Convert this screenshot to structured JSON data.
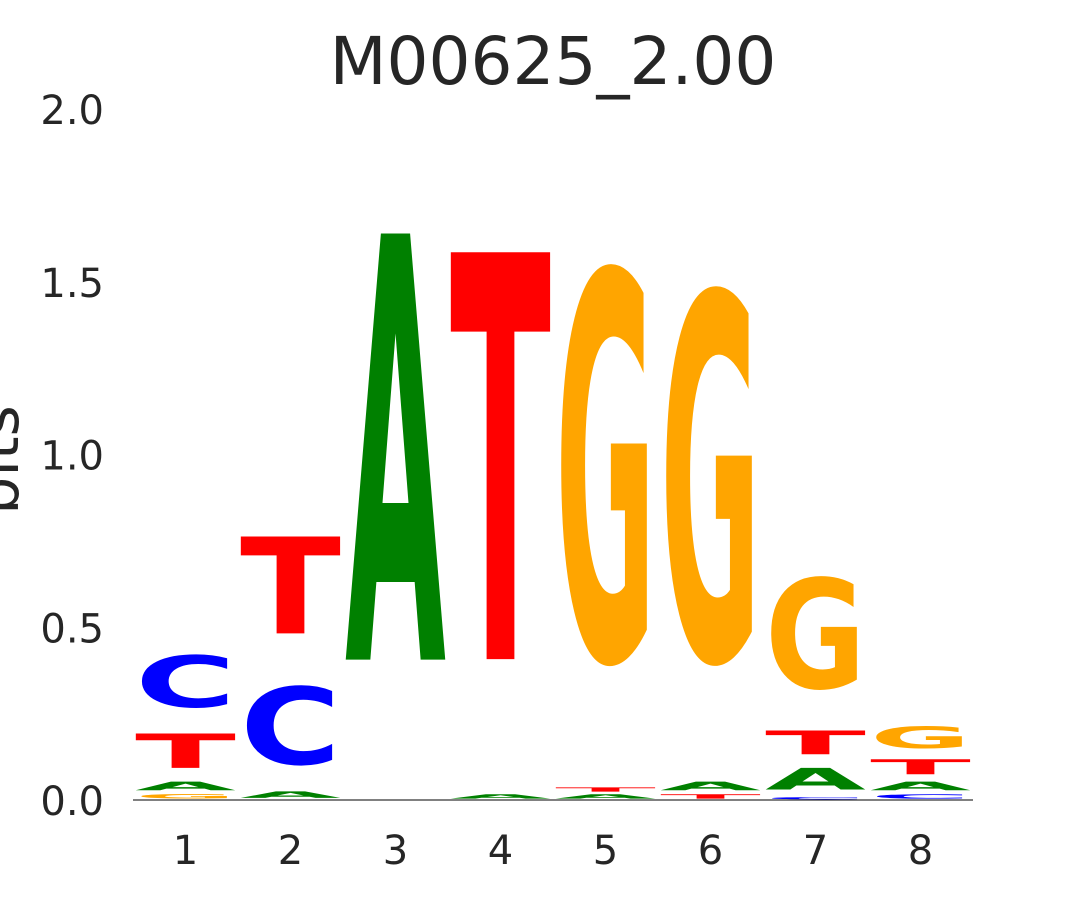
{
  "chart_data": {
    "type": "sequence-logo",
    "title": "M00625_2.00",
    "ylabel": "bits",
    "xlabel": "",
    "ylim": [
      0,
      2.0
    ],
    "yticks": [
      "0.0",
      "0.5",
      "1.0",
      "1.5",
      "2.0"
    ],
    "positions": [
      "1",
      "2",
      "3",
      "4",
      "5",
      "6",
      "7",
      "8"
    ],
    "colors": {
      "A": "#008000",
      "C": "#0000ff",
      "G": "#ffa500",
      "T": "#ff0000"
    },
    "stacks": [
      [
        {
          "letter": "G",
          "height": 0.02
        },
        {
          "letter": "A",
          "height": 0.04
        },
        {
          "letter": "T",
          "height": 0.16
        },
        {
          "letter": "C",
          "height": 0.24
        }
      ],
      [
        {
          "letter": "A",
          "height": 0.03
        },
        {
          "letter": "C",
          "height": 0.36
        },
        {
          "letter": "T",
          "height": 0.45
        }
      ],
      [
        {
          "letter": "A",
          "height": 1.98
        }
      ],
      [
        {
          "letter": "A",
          "height": 0.02
        },
        {
          "letter": "T",
          "height": 1.89
        }
      ],
      [
        {
          "letter": "A",
          "height": 0.02
        },
        {
          "letter": "T",
          "height": 0.02
        },
        {
          "letter": "G",
          "height": 1.8
        }
      ],
      [
        {
          "letter": "T",
          "height": 0.02
        },
        {
          "letter": "A",
          "height": 0.04
        },
        {
          "letter": "G",
          "height": 1.7
        }
      ],
      [
        {
          "letter": "C",
          "height": 0.01
        },
        {
          "letter": "A",
          "height": 0.1
        },
        {
          "letter": "T",
          "height": 0.11
        },
        {
          "letter": "G",
          "height": 0.51
        }
      ],
      [
        {
          "letter": "C",
          "height": 0.02
        },
        {
          "letter": "A",
          "height": 0.04
        },
        {
          "letter": "T",
          "height": 0.07
        },
        {
          "letter": "G",
          "height": 0.1
        }
      ]
    ]
  }
}
